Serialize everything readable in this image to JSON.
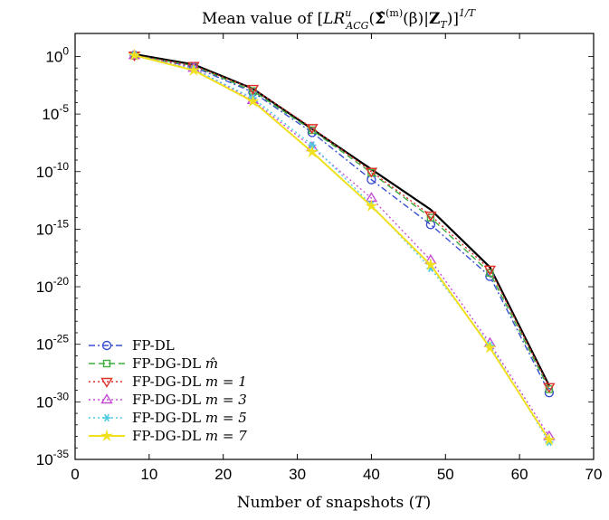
{
  "chart_data": {
    "type": "line",
    "title": "Mean value of [LR^u_ACG(Σ̂^(m)(β)|Z_T)]^1/T",
    "title_parts": {
      "prefix": "Mean value of ",
      "open": "[",
      "lr": "LR",
      "lr_sup": "u",
      "lr_sub": "ACG",
      "paren_open": "(",
      "sigma": "Σ̂",
      "sigma_sup": "(m)",
      "arg": "(β)|",
      "z": "Z",
      "z_sub": "T",
      "close": ")]",
      "power": "1/T"
    },
    "xlabel": "Number of snapshots (T)",
    "xlabel_parts": {
      "text": "Number of snapshots (",
      "var": "T",
      "end": ")"
    },
    "ylabel": "",
    "xlim": [
      0,
      70
    ],
    "ylim_exp": [
      -35,
      2
    ],
    "yscale": "log",
    "grid": false,
    "legend_position": "bottom-left",
    "x_ticks": [
      0,
      10,
      20,
      30,
      40,
      50,
      60,
      70
    ],
    "y_ticks": [
      {
        "base": "10",
        "exp": "0",
        "value_exp": 0
      },
      {
        "base": "10",
        "exp": "-5",
        "value_exp": -5
      },
      {
        "base": "10",
        "exp": "-10",
        "value_exp": -10
      },
      {
        "base": "10",
        "exp": "-15",
        "value_exp": -15
      },
      {
        "base": "10",
        "exp": "-20",
        "value_exp": -20
      },
      {
        "base": "10",
        "exp": "-25",
        "value_exp": -25
      },
      {
        "base": "10",
        "exp": "-30",
        "value_exp": -30
      },
      {
        "base": "10",
        "exp": "-35",
        "value_exp": -35
      }
    ],
    "x": [
      8,
      16,
      24,
      32,
      40,
      48,
      56,
      64
    ],
    "reference_line": {
      "color": "#000000",
      "y_exp": [
        0.2,
        -0.7,
        -2.8,
        -6.3,
        -9.8,
        -13.3,
        -18.3,
        -28.6
      ]
    },
    "series": [
      {
        "name": "FP-DL",
        "legend_main": "FP-DL",
        "legend_math": "",
        "color": "#3a4fd0",
        "marker": "circle",
        "dash": "7,3,2,3",
        "y_exp": [
          0.1,
          -0.9,
          -3.1,
          -6.6,
          -10.7,
          -14.6,
          -19.1,
          -29.2
        ]
      },
      {
        "name": "FP-DG-DL m̂",
        "legend_main": "FP-DG-DL ",
        "legend_math": "m̂",
        "color": "#3fae3f",
        "marker": "square",
        "dash": "7,4",
        "y_exp": [
          0.1,
          -0.8,
          -3.0,
          -6.4,
          -10.1,
          -14.0,
          -18.8,
          -28.9
        ]
      },
      {
        "name": "FP-DG-DL m = 1",
        "legend_main": "FP-DG-DL ",
        "legend_math": "m = 1",
        "color": "#e0302a",
        "marker": "triangle-down",
        "dash": "2,3",
        "y_exp": [
          0.1,
          -0.8,
          -2.8,
          -6.2,
          -10.0,
          -13.8,
          -18.5,
          -28.7
        ]
      },
      {
        "name": "FP-DG-DL m = 3",
        "legend_main": "FP-DG-DL ",
        "legend_math": "m = 3",
        "color": "#c64ad6",
        "marker": "triangle-up",
        "dash": "2,3",
        "y_exp": [
          0.1,
          -1.0,
          -3.8,
          -7.9,
          -12.3,
          -17.7,
          -24.9,
          -33.0
        ]
      },
      {
        "name": "FP-DG-DL m = 5",
        "legend_main": "FP-DG-DL ",
        "legend_math": "m = 5",
        "color": "#4cc9e0",
        "marker": "asterisk",
        "dash": "2,3",
        "y_exp": [
          0.1,
          -1.1,
          -3.6,
          -7.7,
          -12.9,
          -18.4,
          -25.1,
          -33.5
        ]
      },
      {
        "name": "FP-DG-DL m = 7",
        "legend_main": "FP-DG-DL ",
        "legend_math": "m = 7",
        "color": "#f0e020",
        "marker": "star",
        "dash": "",
        "y_exp": [
          0.1,
          -1.2,
          -3.9,
          -8.3,
          -13.0,
          -18.1,
          -25.3,
          -33.3
        ]
      }
    ]
  }
}
